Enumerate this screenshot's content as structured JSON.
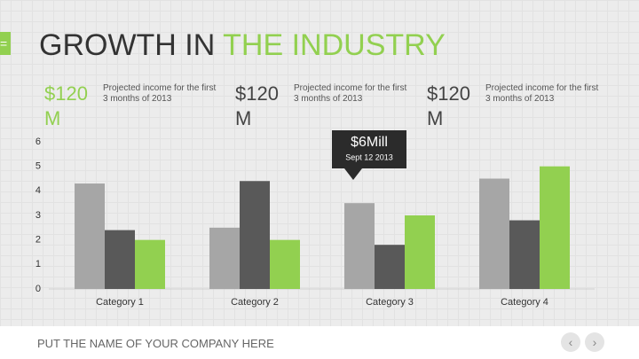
{
  "title_part1": "GROWTH IN",
  "title_part2": "THE INDUSTRY",
  "stats": [
    {
      "amount": "$120 M",
      "description": "Projected income for the first 3 months of 2013"
    },
    {
      "amount": "$120 M",
      "description": "Projected income for the first 3 months of 2013"
    },
    {
      "amount": "$120 M",
      "description": "Projected income for the first 3 months of 2013"
    }
  ],
  "callout": {
    "value": "$6Mill",
    "date": "Sept 12 2013"
  },
  "footer": "PUT THE NAME OF YOUR COMPANY HERE",
  "chart_data": {
    "type": "bar",
    "categories": [
      "Category 1",
      "Category 2",
      "Category 3",
      "Category 4"
    ],
    "series": [
      {
        "color": "#a6a6a6",
        "values": [
          4.3,
          2.5,
          3.5,
          4.5
        ]
      },
      {
        "color": "#595959",
        "values": [
          2.4,
          4.4,
          1.8,
          2.8
        ]
      },
      {
        "color": "#92d050",
        "values": [
          2,
          2,
          3,
          5
        ]
      }
    ],
    "ylim": [
      0,
      6
    ],
    "yticks": [
      0,
      1,
      2,
      3,
      4,
      5,
      6
    ],
    "grid": false
  }
}
